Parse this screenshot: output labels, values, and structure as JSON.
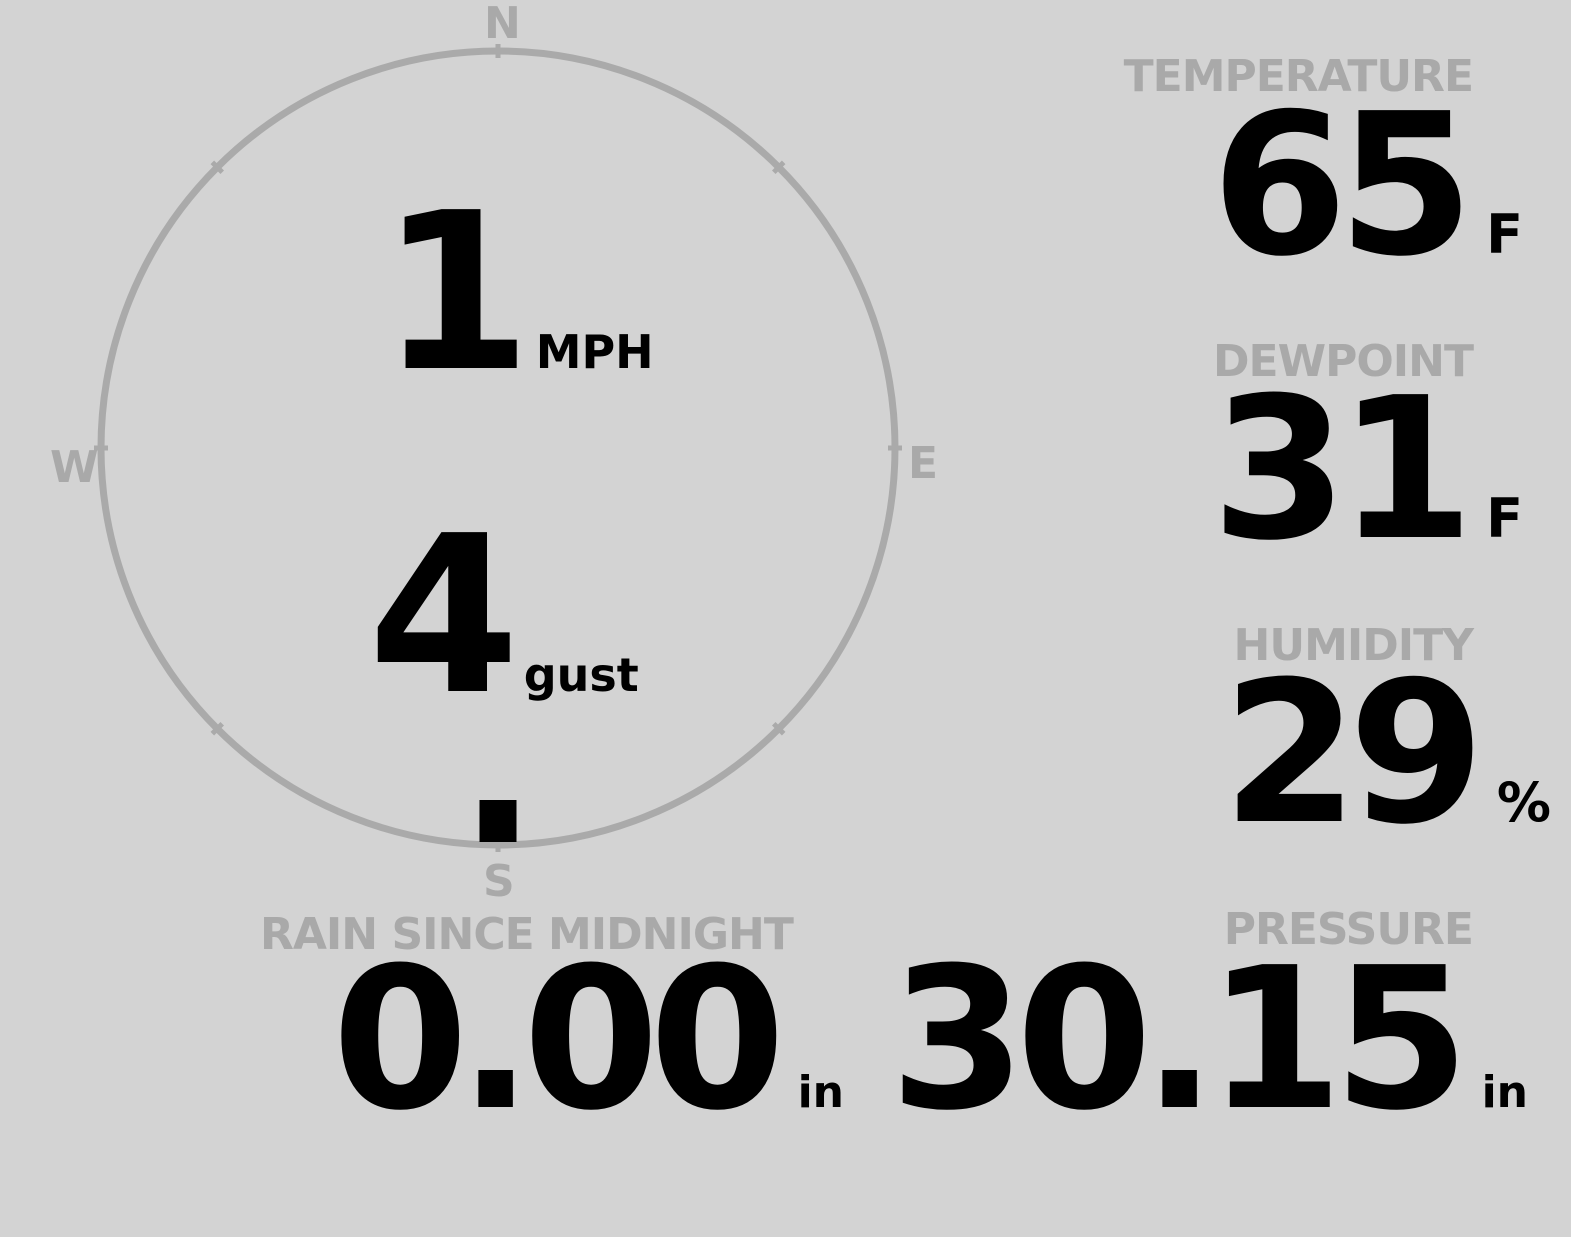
{
  "wind": {
    "speed": "1",
    "speed_unit": "MPH",
    "gust": "4",
    "gust_label": "gust",
    "direction": "S",
    "direction_degrees": 180,
    "cardinals": {
      "n": "N",
      "e": "E",
      "s": "S",
      "w": "W"
    }
  },
  "temperature": {
    "label": "TEMPERATURE",
    "value": "65",
    "unit": "F"
  },
  "dewpoint": {
    "label": "DEWPOINT",
    "value": "31",
    "unit": "F"
  },
  "humidity": {
    "label": "HUMIDITY",
    "value": "29",
    "unit": "%"
  },
  "rain": {
    "label": "RAIN SINCE MIDNIGHT",
    "value": "0.00",
    "unit": "in"
  },
  "pressure": {
    "label": "PRESSURE",
    "value": "30.15",
    "unit": "in"
  },
  "colors": {
    "background": "#d3d3d3",
    "label": "#a9a9a9",
    "value": "#000000",
    "ring": "#a9a9a9"
  }
}
